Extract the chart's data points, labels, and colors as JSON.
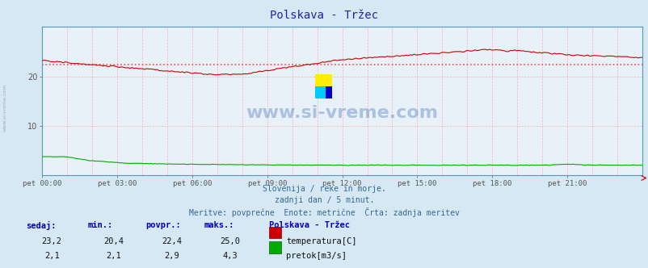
{
  "title": "Polskava - Tržec",
  "bg_color": "#d6e8f4",
  "plot_bg_color": "#e8f0f8",
  "x_labels": [
    "pet 00:00",
    "pet 03:00",
    "pet 06:00",
    "pet 09:00",
    "pet 12:00",
    "pet 15:00",
    "pet 18:00",
    "pet 21:00"
  ],
  "x_ticks_norm": [
    0.0,
    0.125,
    0.25,
    0.375,
    0.5,
    0.625,
    0.75,
    0.875
  ],
  "ylim": [
    0,
    30
  ],
  "yticks": [
    10,
    20
  ],
  "temp_color": "#cc0000",
  "flow_color": "#00aa00",
  "avg_line_color": "#ff4444",
  "avg_temp": 22.4,
  "temp_min": 20.4,
  "temp_max": 25.0,
  "flow_min": 2.1,
  "flow_max": 4.3,
  "avg_flow": 2.9,
  "temp_sedaj": "23,2",
  "temp_min_s": "20,4",
  "temp_avg_s": "22,4",
  "temp_max_s": "25,0",
  "flow_sedaj": "2,1",
  "flow_min_s": "2,1",
  "flow_avg_s": "2,9",
  "flow_max_s": "4,3",
  "subtitle1": "Slovenija / reke in morje.",
  "subtitle2": "zadnji dan / 5 minut.",
  "subtitle3": "Meritve: povprečne  Enote: metrične  Črta: zadnja meritev",
  "legend_title": "Polskava - Tržec",
  "legend_temp": "temperatura[C]",
  "legend_flow": "pretok[m3/s]",
  "watermark": "www.si-vreme.com",
  "left_label": "www.si-vreme.com",
  "n_points": 288
}
